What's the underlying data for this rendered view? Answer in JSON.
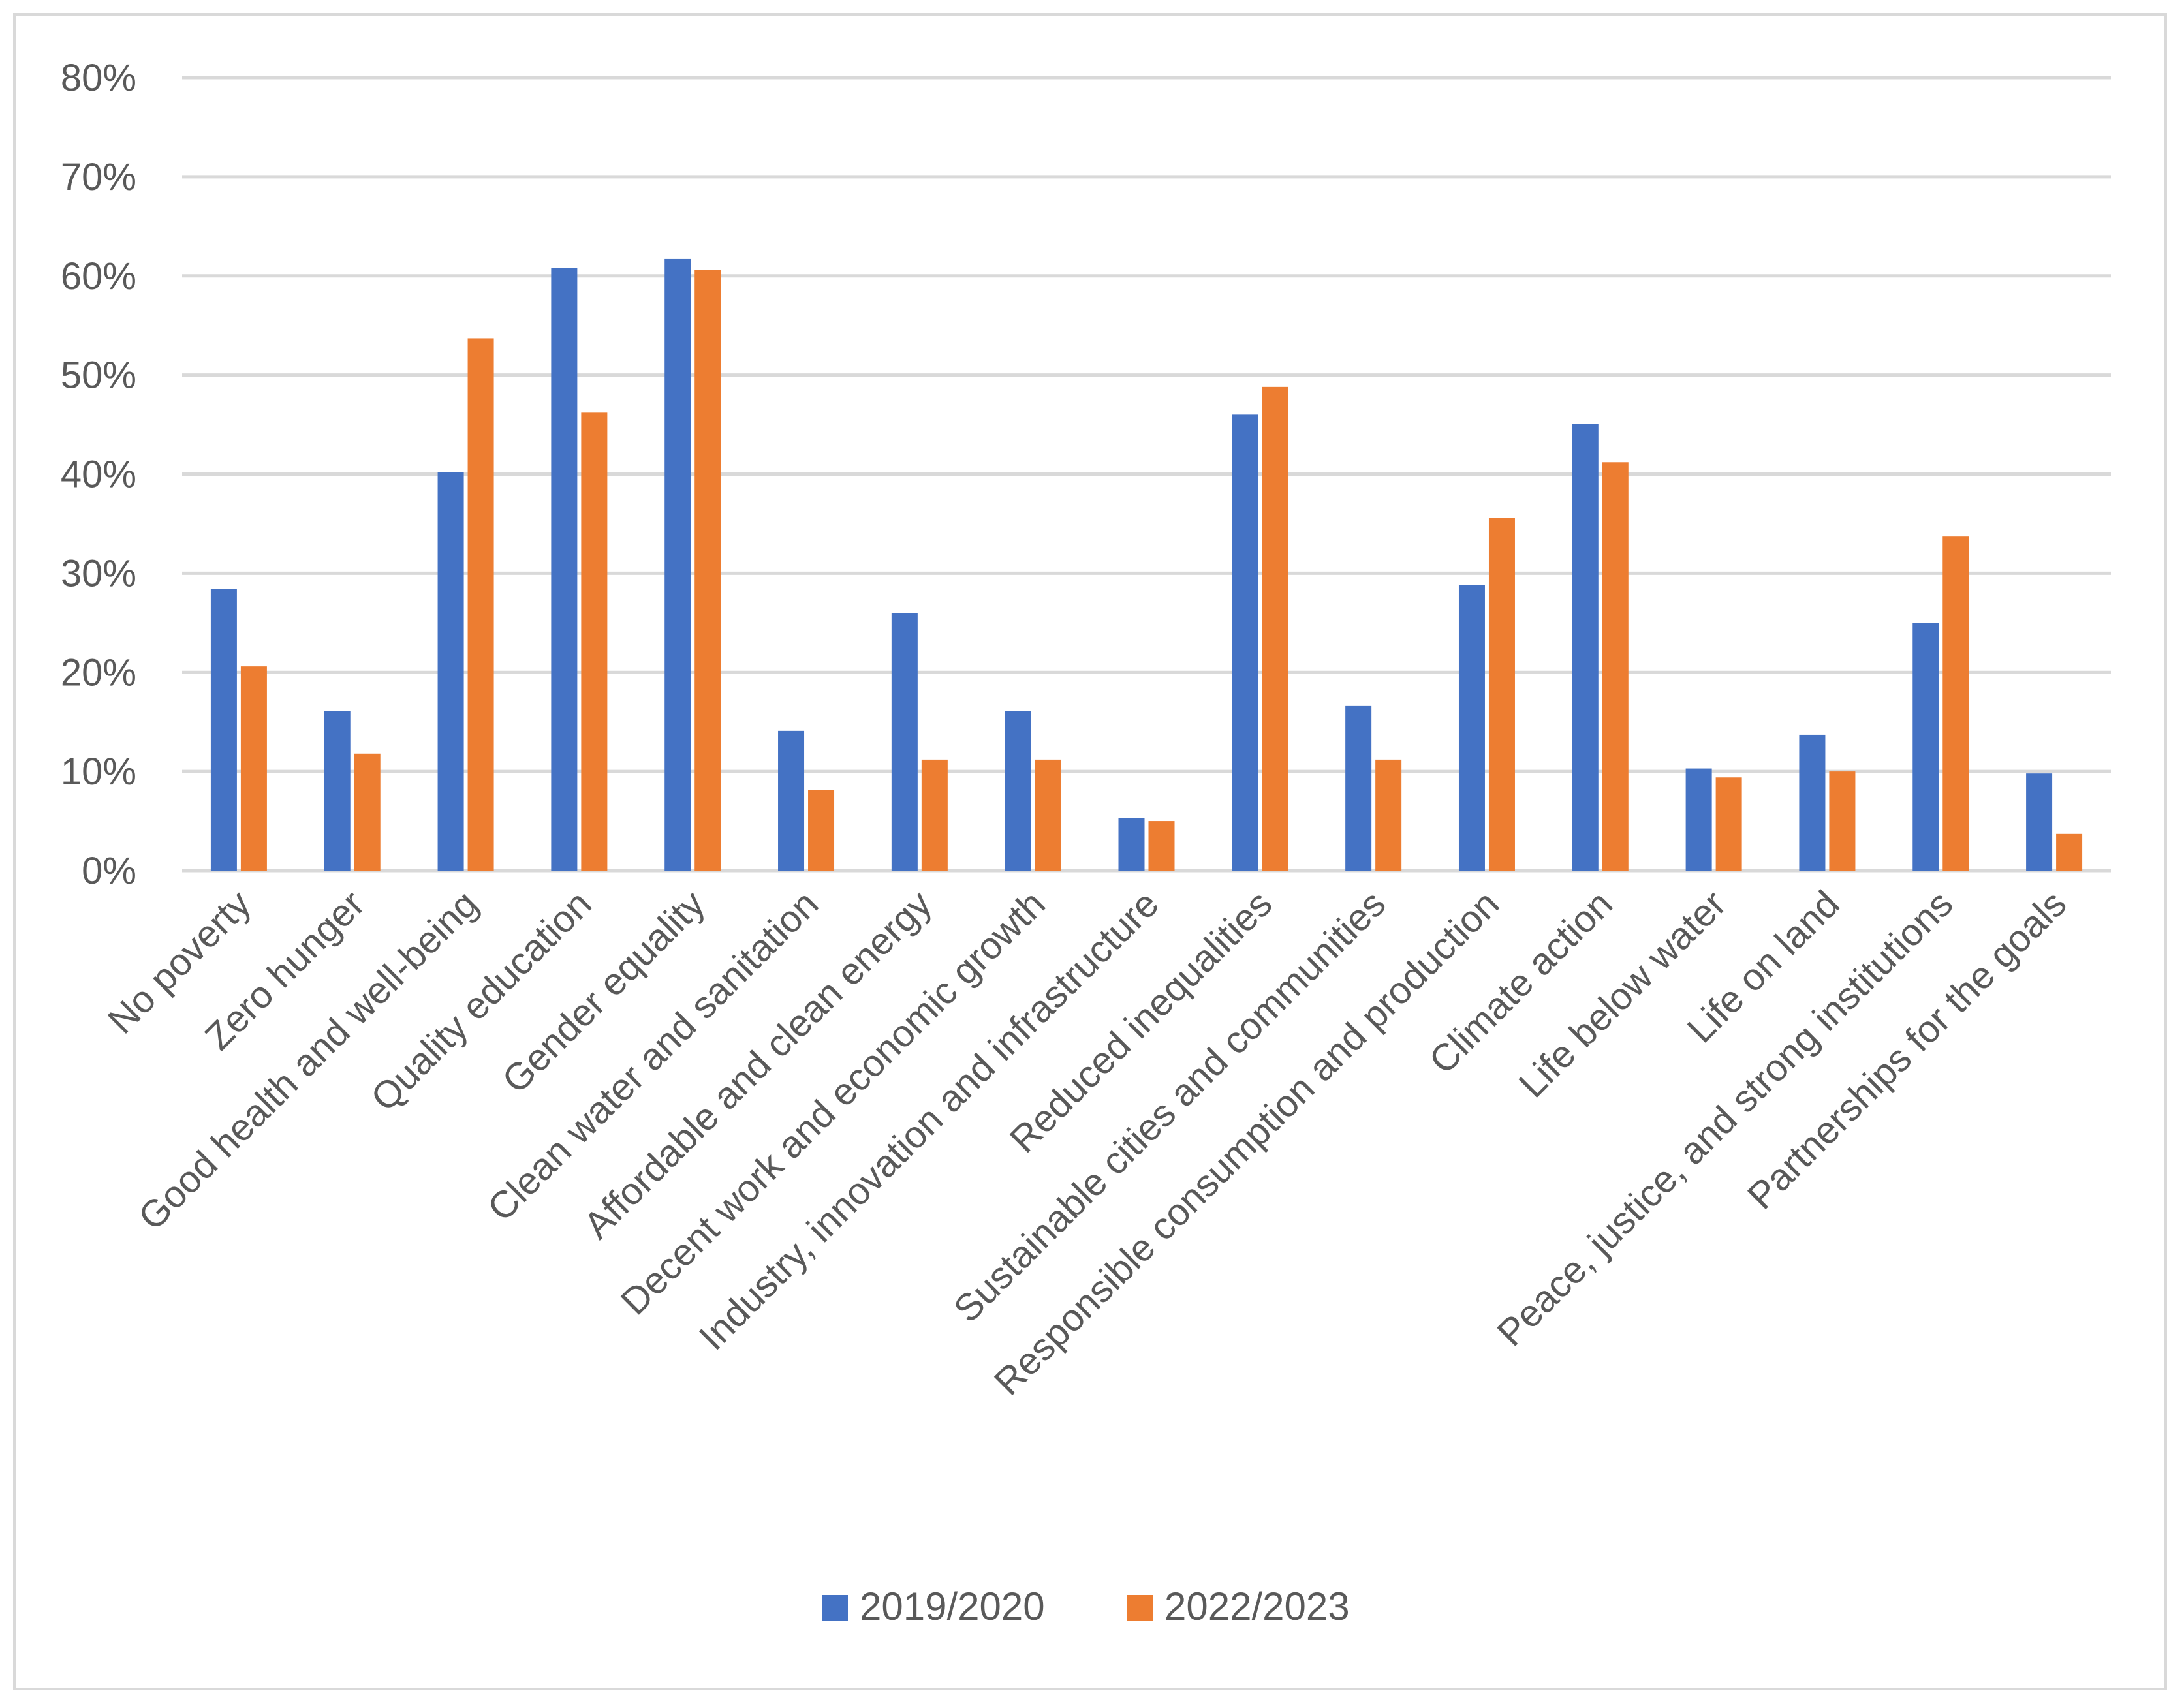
{
  "chart_data": {
    "type": "bar",
    "title": "",
    "xlabel": "",
    "ylabel": "",
    "ylim": [
      0,
      80
    ],
    "yticks": [
      "0%",
      "10%",
      "20%",
      "30%",
      "40%",
      "50%",
      "60%",
      "70%",
      "80%"
    ],
    "grid": true,
    "legend_position": "bottom",
    "categories": [
      "No poverty",
      "Zero hunger",
      "Good health and well-being",
      "Quality education",
      "Gender equality",
      "Clean water and sanitation",
      "Affordable and clean energy",
      "Decent work and economic growth",
      "Industry, innovation and infrastructure",
      "Reduced inequalities",
      "Sustainable cities and communities",
      "Responsible consumption and production",
      "Climate action",
      "Life below water",
      "Life on land",
      "Peace, justice, and strong institutions",
      "Partnerships for the goals"
    ],
    "series": [
      {
        "name": "2019/2020",
        "color": "#4472c4",
        "values": [
          28.4,
          16.1,
          40.2,
          60.8,
          61.7,
          14.1,
          26.0,
          16.1,
          5.3,
          46.0,
          16.6,
          28.8,
          45.1,
          10.3,
          13.7,
          25.0,
          9.8
        ]
      },
      {
        "name": "2022/2023",
        "color": "#ed7d31",
        "values": [
          20.6,
          11.8,
          53.7,
          46.2,
          60.6,
          8.1,
          11.2,
          11.2,
          5.0,
          48.8,
          11.2,
          35.6,
          41.2,
          9.4,
          10.0,
          33.7,
          3.7
        ]
      }
    ]
  }
}
